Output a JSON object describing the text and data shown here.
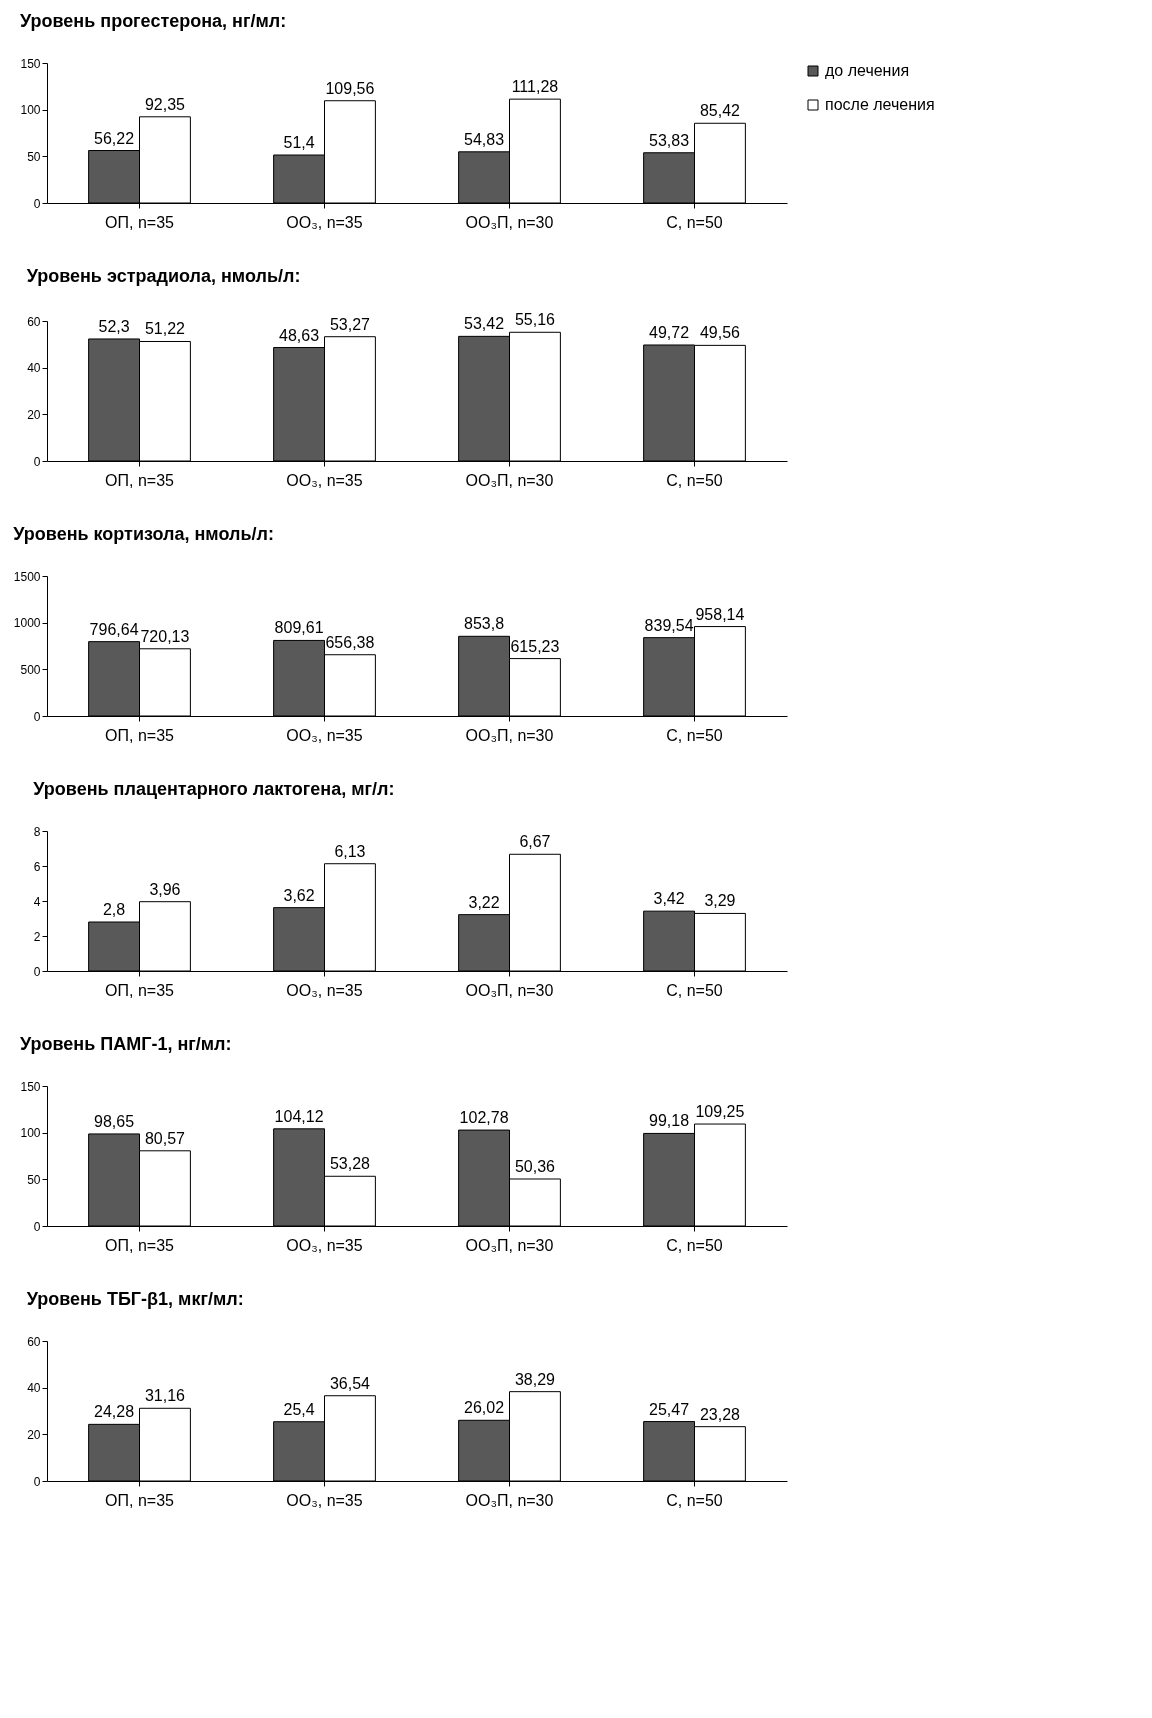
{
  "chart_data": [
    {
      "type": "bar",
      "title": "Уровень прогестерона, нг/мл:",
      "categories": [
        "ОП, n=35",
        "ОО₃, n=35",
        "ОО₃П, n=30",
        "С, n=50"
      ],
      "series": [
        {
          "name": "до лечения",
          "color": "#595959",
          "values": [
            56.22,
            51.4,
            54.83,
            53.83
          ],
          "value_labels": [
            "56,22",
            "51,4",
            "54,83",
            "53,83"
          ]
        },
        {
          "name": "после лечения",
          "color": "#ffffff",
          "values": [
            92.35,
            109.56,
            111.28,
            85.42
          ],
          "value_labels": [
            "92,35",
            "109,56",
            "111,28",
            "85,42"
          ]
        }
      ],
      "ylim": [
        0,
        150
      ],
      "yticks": [
        0,
        50,
        100,
        150
      ],
      "legend": "top right"
    },
    {
      "type": "bar",
      "title": "Уровень эстрадиола, нмоль/л:",
      "categories": [
        "ОП, n=35",
        "ОО₃, n=35",
        "ОО₃П, n=30",
        "С, n=50"
      ],
      "series": [
        {
          "color": "#595959",
          "values": [
            52.3,
            48.63,
            53.42,
            49.72
          ],
          "value_labels": [
            "52,3",
            "48,63",
            "53,42",
            "49,72"
          ]
        },
        {
          "color": "#ffffff",
          "values": [
            51.22,
            53.27,
            55.16,
            49.56
          ],
          "value_labels": [
            "51,22",
            "53,27",
            "55,16",
            "49,56"
          ]
        }
      ],
      "ylim": [
        0,
        60
      ],
      "yticks": [
        0,
        20,
        40,
        60
      ]
    },
    {
      "type": "bar",
      "title": "Уровень кортизола, нмоль/л:",
      "categories": [
        "ОП, n=35",
        "ОО₃, n=35",
        "ОО₃П, n=30",
        "С, n=50"
      ],
      "series": [
        {
          "color": "#595959",
          "values": [
            796.64,
            809.61,
            853.8,
            839.54
          ],
          "value_labels": [
            "796,64",
            "809,61",
            "853,8",
            "839,54"
          ]
        },
        {
          "color": "#ffffff",
          "values": [
            720.13,
            656.38,
            615.23,
            958.14
          ],
          "value_labels": [
            "720,13",
            "656,38",
            "615,23",
            "958,14"
          ]
        }
      ],
      "ylim": [
        0,
        1500
      ],
      "yticks": [
        0,
        500,
        1000,
        1500
      ]
    },
    {
      "type": "bar",
      "title": "Уровень плацентарного лактогена, мг/л:",
      "categories": [
        "ОП, n=35",
        "ОО₃, n=35",
        "ОО₃П, n=30",
        "С, n=50"
      ],
      "series": [
        {
          "color": "#595959",
          "values": [
            2.8,
            3.62,
            3.22,
            3.42
          ],
          "value_labels": [
            "2,8",
            "3,62",
            "3,22",
            "3,42"
          ]
        },
        {
          "color": "#ffffff",
          "values": [
            3.96,
            6.13,
            6.67,
            3.29
          ],
          "value_labels": [
            "3,96",
            "6,13",
            "6,67",
            "3,29"
          ]
        }
      ],
      "ylim": [
        0,
        8
      ],
      "yticks": [
        0,
        2,
        4,
        6,
        8
      ]
    },
    {
      "type": "bar",
      "title": "Уровень ПАМГ-1, нг/мл:",
      "categories": [
        "ОП, n=35",
        "ОО₃, n=35",
        "ОО₃П, n=30",
        "С, n=50"
      ],
      "series": [
        {
          "color": "#595959",
          "values": [
            98.65,
            104.12,
            102.78,
            99.18
          ],
          "value_labels": [
            "98,65",
            "104,12",
            "102,78",
            "99,18"
          ]
        },
        {
          "color": "#ffffff",
          "values": [
            80.57,
            53.28,
            50.36,
            109.25
          ],
          "value_labels": [
            "80,57",
            "53,28",
            "50,36",
            "109,25"
          ]
        }
      ],
      "ylim": [
        0,
        150
      ],
      "yticks": [
        0,
        50,
        100,
        150
      ]
    },
    {
      "type": "bar",
      "title": "Уровень ТБГ-β1, мкг/мл:",
      "categories": [
        "ОП, n=35",
        "ОО₃, n=35",
        "ОО₃П, n=30",
        "С, n=50"
      ],
      "series": [
        {
          "color": "#595959",
          "values": [
            24.28,
            25.4,
            26.02,
            25.47
          ],
          "value_labels": [
            "24,28",
            "25,4",
            "26,02",
            "25,47"
          ]
        },
        {
          "color": "#ffffff",
          "values": [
            31.16,
            36.54,
            38.29,
            23.28
          ],
          "value_labels": [
            "31,16",
            "36,54",
            "38,29",
            "23,28"
          ]
        }
      ],
      "ylim": [
        0,
        60
      ],
      "yticks": [
        0,
        20,
        40,
        60
      ]
    }
  ]
}
